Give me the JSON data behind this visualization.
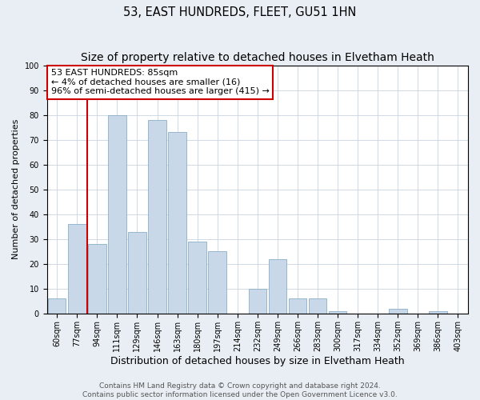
{
  "title": "53, EAST HUNDREDS, FLEET, GU51 1HN",
  "subtitle": "Size of property relative to detached houses in Elvetham Heath",
  "xlabel": "Distribution of detached houses by size in Elvetham Heath",
  "ylabel": "Number of detached properties",
  "bar_labels": [
    "60sqm",
    "77sqm",
    "94sqm",
    "111sqm",
    "129sqm",
    "146sqm",
    "163sqm",
    "180sqm",
    "197sqm",
    "214sqm",
    "232sqm",
    "249sqm",
    "266sqm",
    "283sqm",
    "300sqm",
    "317sqm",
    "334sqm",
    "352sqm",
    "369sqm",
    "386sqm",
    "403sqm"
  ],
  "bar_heights": [
    6,
    36,
    28,
    80,
    33,
    78,
    73,
    29,
    25,
    0,
    10,
    22,
    6,
    6,
    1,
    0,
    0,
    2,
    0,
    1,
    0
  ],
  "bar_color": "#c8d8e8",
  "bar_edge_color": "#8aafc8",
  "vline_color": "#cc0000",
  "ylim": [
    0,
    100
  ],
  "yticks": [
    0,
    10,
    20,
    30,
    40,
    50,
    60,
    70,
    80,
    90,
    100
  ],
  "annotation_line1": "53 EAST HUNDREDS: 85sqm",
  "annotation_line2": "← 4% of detached houses are smaller (16)",
  "annotation_line3": "96% of semi-detached houses are larger (415) →",
  "annotation_box_color": "#ffffff",
  "annotation_box_edge": "#cc0000",
  "footer_line1": "Contains HM Land Registry data © Crown copyright and database right 2024.",
  "footer_line2": "Contains public sector information licensed under the Open Government Licence v3.0.",
  "background_color": "#e8eef4",
  "plot_background": "#ffffff",
  "grid_color": "#c8d4e0",
  "title_fontsize": 10.5,
  "xlabel_fontsize": 9,
  "ylabel_fontsize": 8,
  "tick_fontsize": 7,
  "annotation_fontsize": 8,
  "footer_fontsize": 6.5
}
